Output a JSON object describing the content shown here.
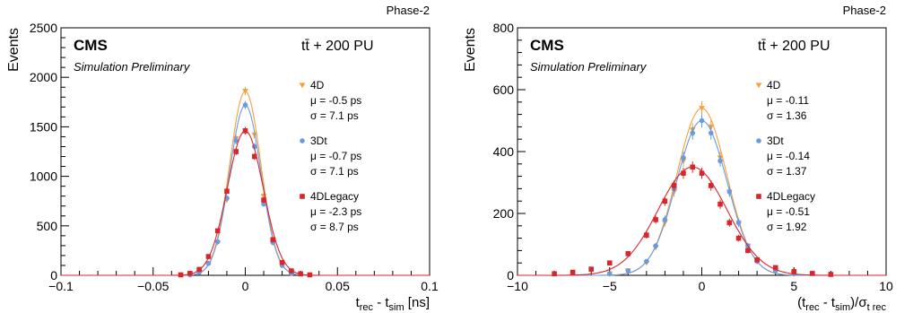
{
  "chart_data": [
    {
      "type": "scatter",
      "corner_label": "Phase-2",
      "experiment": "CMS",
      "subtitle": "Simulation Preliminary",
      "process": "tt̄ + 200 PU",
      "xlabel": "t_rec - t_sim [ns]",
      "ylabel": "Events",
      "xlim": [
        -0.1,
        0.1
      ],
      "ylim": [
        0,
        2500
      ],
      "xticks": [
        -0.1,
        -0.05,
        0,
        0.05,
        0.1
      ],
      "xtick_labels": [
        "−0.1",
        "−0.05",
        "0",
        "0.05",
        "0.1"
      ],
      "yticks": [
        0,
        500,
        1000,
        1500,
        2000,
        2500
      ],
      "ytick_labels": [
        "0",
        "500",
        "1000",
        "1500",
        "2000",
        "2500"
      ],
      "legend_position": "right",
      "series": [
        {
          "name": "4D",
          "color": "#f5a03a",
          "marker": "triangle-down",
          "mu_label": "μ = -0.5 ps",
          "sigma_label": "σ = 7.1 ps",
          "x": [
            -0.03,
            -0.025,
            -0.02,
            -0.015,
            -0.01,
            -0.005,
            0.0,
            0.005,
            0.01,
            0.015,
            0.02,
            0.025
          ],
          "y": [
            5,
            30,
            120,
            330,
            760,
            1380,
            1860,
            1420,
            800,
            350,
            110,
            25
          ]
        },
        {
          "name": "3Dt",
          "color": "#6a9be0",
          "marker": "circle",
          "mu_label": "μ = -0.7 ps",
          "sigma_label": "σ = 7.1 ps",
          "x": [
            -0.03,
            -0.025,
            -0.02,
            -0.015,
            -0.01,
            -0.005,
            0.0,
            0.005,
            0.01,
            0.015,
            0.02,
            0.025
          ],
          "y": [
            5,
            30,
            120,
            340,
            780,
            1360,
            1720,
            1300,
            720,
            330,
            100,
            20
          ]
        },
        {
          "name": "4DLegacy",
          "color": "#d9262c",
          "marker": "square",
          "mu_label": "μ = -2.3 ps",
          "sigma_label": "σ = 8.7 ps",
          "x": [
            -0.035,
            -0.03,
            -0.025,
            -0.02,
            -0.015,
            -0.01,
            -0.005,
            0.0,
            0.005,
            0.01,
            0.015,
            0.02,
            0.025,
            0.03,
            0.035
          ],
          "y": [
            5,
            20,
            60,
            190,
            450,
            850,
            1250,
            1460,
            1200,
            760,
            360,
            130,
            45,
            15,
            5
          ]
        }
      ]
    },
    {
      "type": "scatter",
      "corner_label": "Phase-2",
      "experiment": "CMS",
      "subtitle": "Simulation Preliminary",
      "process": "tt̄ + 200 PU",
      "xlabel": "(t_rec - t_sim)/σ_t rec",
      "ylabel": "Events",
      "xlim": [
        -10,
        10
      ],
      "ylim": [
        0,
        800
      ],
      "xticks": [
        -10,
        -5,
        0,
        5,
        10
      ],
      "xtick_labels": [
        "−10",
        "−5",
        "0",
        "5",
        "10"
      ],
      "yticks": [
        0,
        200,
        400,
        600,
        800
      ],
      "ytick_labels": [
        "0",
        "200",
        "400",
        "600",
        "800"
      ],
      "legend_position": "right",
      "series": [
        {
          "name": "4D",
          "color": "#f5a03a",
          "marker": "triangle-down",
          "mu_label": "μ = -0.11",
          "sigma_label": "σ = 1.36",
          "x": [
            -5,
            -4,
            -3,
            -2.5,
            -2,
            -1.5,
            -1,
            -0.5,
            0,
            0.5,
            1,
            1.5,
            2,
            2.5,
            3,
            4,
            5
          ],
          "y": [
            5,
            15,
            40,
            90,
            170,
            270,
            370,
            470,
            540,
            480,
            380,
            270,
            170,
            95,
            45,
            15,
            5
          ]
        },
        {
          "name": "3Dt",
          "color": "#6a9be0",
          "marker": "circle",
          "mu_label": "μ = -0.14",
          "sigma_label": "σ = 1.37",
          "x": [
            -5,
            -4,
            -3,
            -2.5,
            -2,
            -1.5,
            -1,
            -0.5,
            0,
            0.5,
            1,
            1.5,
            2,
            2.5,
            3,
            4,
            5
          ],
          "y": [
            5,
            15,
            45,
            95,
            180,
            280,
            380,
            460,
            500,
            460,
            370,
            270,
            170,
            95,
            45,
            15,
            5
          ]
        },
        {
          "name": "4DLegacy",
          "color": "#d9262c",
          "marker": "square",
          "mu_label": "μ = -0.51",
          "sigma_label": "σ = 1.92",
          "x": [
            -8,
            -7,
            -6,
            -5,
            -4,
            -3,
            -2.5,
            -2,
            -1.5,
            -1,
            -0.5,
            0,
            0.5,
            1,
            1.5,
            2,
            2.5,
            3,
            4,
            5,
            6,
            7
          ],
          "y": [
            5,
            10,
            20,
            40,
            70,
            130,
            180,
            240,
            290,
            330,
            350,
            330,
            290,
            230,
            170,
            120,
            80,
            50,
            25,
            12,
            6,
            3
          ]
        }
      ]
    }
  ]
}
